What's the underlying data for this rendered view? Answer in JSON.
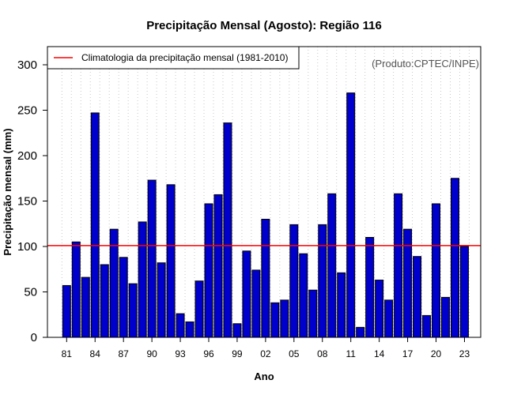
{
  "chart_data": {
    "type": "bar",
    "title": "Precipitação Mensal (Agosto): Região 116",
    "xlabel": "Ano",
    "ylabel": "Precipitação mensal (mm)",
    "ylim": [
      0,
      320
    ],
    "yticks": [
      0,
      50,
      100,
      150,
      200,
      250,
      300
    ],
    "categories": [
      "81",
      "82",
      "83",
      "84",
      "85",
      "86",
      "87",
      "88",
      "89",
      "90",
      "91",
      "92",
      "93",
      "94",
      "95",
      "96",
      "97",
      "98",
      "99",
      "00",
      "01",
      "02",
      "03",
      "04",
      "05",
      "06",
      "07",
      "08",
      "09",
      "10",
      "11",
      "12",
      "13",
      "14",
      "15",
      "16",
      "17",
      "18",
      "19",
      "20",
      "21",
      "22",
      "23"
    ],
    "xtick_labels": [
      "81",
      "84",
      "87",
      "90",
      "93",
      "96",
      "99",
      "02",
      "05",
      "08",
      "11",
      "14",
      "17",
      "20",
      "23"
    ],
    "values": [
      57,
      105,
      66,
      247,
      80,
      119,
      88,
      59,
      127,
      173,
      82,
      168,
      26,
      17,
      62,
      147,
      157,
      236,
      15,
      95,
      74,
      130,
      38,
      41,
      124,
      92,
      52,
      124,
      158,
      71,
      269,
      11,
      110,
      63,
      41,
      158,
      119,
      89,
      24,
      147,
      44,
      175,
      100
    ],
    "reference_line": {
      "label": "Climatologia da precipitação mensal (1981-2010)",
      "value": 101,
      "color": "#ff0000"
    },
    "bar_color": "#0000cd",
    "credit": "(Produto:CPTEC/INPE)",
    "grid": "vertical-dotted"
  }
}
